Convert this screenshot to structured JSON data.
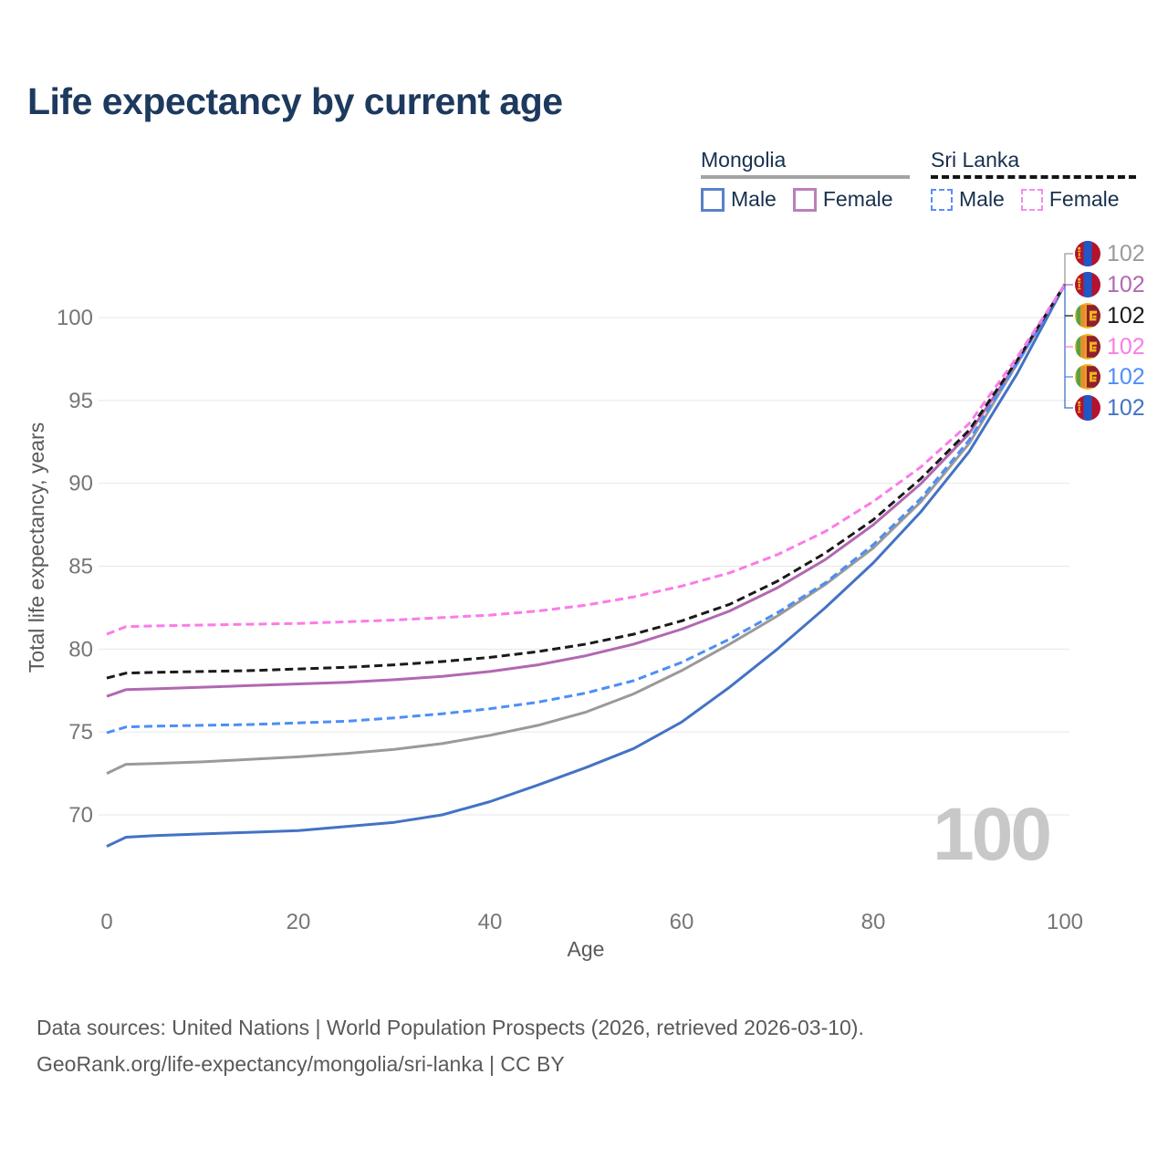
{
  "title": "Life expectancy by current age",
  "watermark": "100",
  "legend": {
    "groups": [
      {
        "title": "Mongolia",
        "rule_color": "#a3a3a3",
        "rule_dashed": false,
        "items": [
          {
            "label": "Male",
            "color": "#5b80c7",
            "dashed": false
          },
          {
            "label": "Female",
            "color": "#bb7fbb",
            "dashed": false
          }
        ]
      },
      {
        "title": "Sri Lanka",
        "rule_color": "#141414",
        "rule_dashed": true,
        "items": [
          {
            "label": "Male",
            "color": "#5a8ff5",
            "dashed": true
          },
          {
            "label": "Female",
            "color": "#fb8ae8",
            "dashed": true
          }
        ]
      }
    ]
  },
  "chart_data": {
    "type": "line",
    "title": "Life expectancy by current age",
    "xlabel": "Age",
    "ylabel": "Total life expectancy, years",
    "xlim": [
      0,
      100
    ],
    "ylim": [
      67,
      102.5
    ],
    "xticks": [
      0,
      20,
      40,
      60,
      80,
      100
    ],
    "yticks": [
      70,
      75,
      80,
      85,
      90,
      95,
      100
    ],
    "grid": "horizontal",
    "legend_position": "top-right",
    "series": [
      {
        "id": "mongolia-total",
        "country": "Mongolia",
        "sex": "Total",
        "color": "#9a9a9a",
        "dash": null,
        "points": [
          [
            0,
            72.5
          ],
          [
            2,
            73.05
          ],
          [
            5,
            73.1
          ],
          [
            10,
            73.2
          ],
          [
            15,
            73.35
          ],
          [
            20,
            73.5
          ],
          [
            25,
            73.7
          ],
          [
            30,
            73.95
          ],
          [
            35,
            74.3
          ],
          [
            40,
            74.8
          ],
          [
            45,
            75.4
          ],
          [
            50,
            76.2
          ],
          [
            55,
            77.3
          ],
          [
            60,
            78.7
          ],
          [
            65,
            80.3
          ],
          [
            70,
            82.0
          ],
          [
            75,
            83.9
          ],
          [
            80,
            86.1
          ],
          [
            85,
            88.9
          ],
          [
            90,
            92.4
          ],
          [
            95,
            97.2
          ],
          [
            100,
            102
          ]
        ]
      },
      {
        "id": "mongolia-female",
        "country": "Mongolia",
        "sex": "Female",
        "color": "#b168b1",
        "dash": null,
        "points": [
          [
            0,
            77.15
          ],
          [
            2,
            77.55
          ],
          [
            5,
            77.6
          ],
          [
            10,
            77.7
          ],
          [
            15,
            77.8
          ],
          [
            20,
            77.9
          ],
          [
            25,
            78.0
          ],
          [
            30,
            78.15
          ],
          [
            35,
            78.35
          ],
          [
            40,
            78.65
          ],
          [
            45,
            79.05
          ],
          [
            50,
            79.6
          ],
          [
            55,
            80.3
          ],
          [
            60,
            81.2
          ],
          [
            65,
            82.3
          ],
          [
            70,
            83.7
          ],
          [
            75,
            85.4
          ],
          [
            80,
            87.5
          ],
          [
            85,
            90.0
          ],
          [
            90,
            93.0
          ],
          [
            95,
            97.3
          ],
          [
            100,
            102
          ]
        ]
      },
      {
        "id": "mongolia-male",
        "country": "Mongolia",
        "sex": "Male",
        "color": "#4472c4",
        "dash": null,
        "points": [
          [
            0,
            68.1
          ],
          [
            2,
            68.65
          ],
          [
            5,
            68.75
          ],
          [
            10,
            68.85
          ],
          [
            15,
            68.95
          ],
          [
            20,
            69.05
          ],
          [
            25,
            69.3
          ],
          [
            30,
            69.55
          ],
          [
            35,
            70.0
          ],
          [
            40,
            70.8
          ],
          [
            45,
            71.8
          ],
          [
            50,
            72.85
          ],
          [
            55,
            74.0
          ],
          [
            60,
            75.6
          ],
          [
            65,
            77.7
          ],
          [
            70,
            80.0
          ],
          [
            75,
            82.5
          ],
          [
            80,
            85.2
          ],
          [
            85,
            88.3
          ],
          [
            90,
            91.9
          ],
          [
            95,
            96.6
          ],
          [
            100,
            102
          ]
        ]
      },
      {
        "id": "srilanka-male",
        "country": "Sri Lanka",
        "sex": "Male",
        "color": "#4d8ef7",
        "dash": "9 5",
        "points": [
          [
            0,
            74.95
          ],
          [
            2,
            75.3
          ],
          [
            5,
            75.35
          ],
          [
            10,
            75.4
          ],
          [
            15,
            75.45
          ],
          [
            20,
            75.55
          ],
          [
            25,
            75.65
          ],
          [
            30,
            75.85
          ],
          [
            35,
            76.1
          ],
          [
            40,
            76.4
          ],
          [
            45,
            76.8
          ],
          [
            50,
            77.35
          ],
          [
            55,
            78.1
          ],
          [
            60,
            79.2
          ],
          [
            65,
            80.6
          ],
          [
            70,
            82.2
          ],
          [
            75,
            84.0
          ],
          [
            80,
            86.3
          ],
          [
            85,
            89.1
          ],
          [
            90,
            92.6
          ],
          [
            95,
            97.2
          ],
          [
            100,
            102
          ]
        ]
      },
      {
        "id": "srilanka-total",
        "country": "Sri Lanka",
        "sex": "Total",
        "color": "#1a1a1a",
        "dash": "9 5",
        "points": [
          [
            0,
            78.25
          ],
          [
            2,
            78.55
          ],
          [
            5,
            78.6
          ],
          [
            10,
            78.65
          ],
          [
            15,
            78.7
          ],
          [
            20,
            78.8
          ],
          [
            25,
            78.9
          ],
          [
            30,
            79.05
          ],
          [
            35,
            79.25
          ],
          [
            40,
            79.5
          ],
          [
            45,
            79.85
          ],
          [
            50,
            80.3
          ],
          [
            55,
            80.9
          ],
          [
            60,
            81.7
          ],
          [
            65,
            82.7
          ],
          [
            70,
            84.1
          ],
          [
            75,
            85.8
          ],
          [
            80,
            87.8
          ],
          [
            85,
            90.3
          ],
          [
            90,
            93.2
          ],
          [
            95,
            97.4
          ],
          [
            100,
            102
          ]
        ]
      },
      {
        "id": "srilanka-female",
        "country": "Sri Lanka",
        "sex": "Female",
        "color": "#fb7be7",
        "dash": "9 5",
        "points": [
          [
            0,
            80.9
          ],
          [
            2,
            81.35
          ],
          [
            5,
            81.4
          ],
          [
            10,
            81.45
          ],
          [
            15,
            81.5
          ],
          [
            20,
            81.55
          ],
          [
            25,
            81.65
          ],
          [
            30,
            81.75
          ],
          [
            35,
            81.9
          ],
          [
            40,
            82.05
          ],
          [
            45,
            82.3
          ],
          [
            50,
            82.65
          ],
          [
            55,
            83.15
          ],
          [
            60,
            83.8
          ],
          [
            65,
            84.6
          ],
          [
            70,
            85.7
          ],
          [
            75,
            87.1
          ],
          [
            80,
            88.9
          ],
          [
            85,
            91.0
          ],
          [
            90,
            93.6
          ],
          [
            95,
            97.6
          ],
          [
            100,
            102
          ]
        ]
      }
    ]
  },
  "end_labels": [
    {
      "flag": "mongolia",
      "value": "102",
      "color": "#9a9a9a"
    },
    {
      "flag": "mongolia",
      "value": "102",
      "color": "#b168b1"
    },
    {
      "flag": "sri-lanka",
      "value": "102",
      "color": "#1a1a1a"
    },
    {
      "flag": "sri-lanka",
      "value": "102",
      "color": "#fb7be7"
    },
    {
      "flag": "sri-lanka",
      "value": "102",
      "color": "#4d8ef7"
    },
    {
      "flag": "mongolia",
      "value": "102",
      "color": "#4472c4"
    }
  ],
  "footer": {
    "line1": "Data sources: United Nations | World Population Prospects (2026, retrieved 2026-03-10).",
    "line2": "GeoRank.org/life-expectancy/mongolia/sri-lanka | CC BY"
  }
}
